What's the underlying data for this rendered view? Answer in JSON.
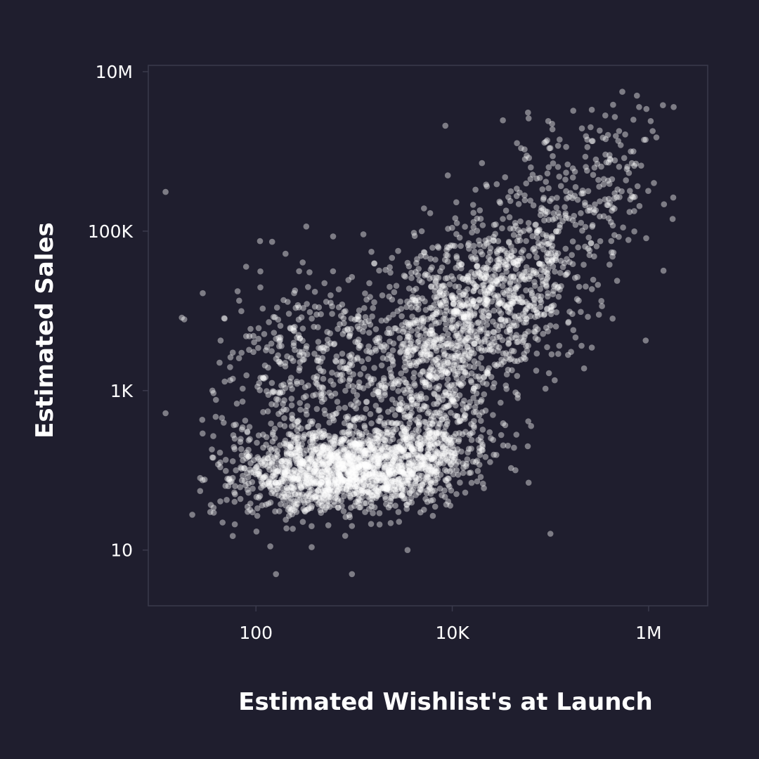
{
  "chart_data": {
    "type": "scatter",
    "xlabel": "Estimated Wishlist's at Launch",
    "ylabel": "Estimated Sales",
    "x_scale": "log",
    "y_scale": "log",
    "xlim": [
      8,
      4000000
    ],
    "ylim": [
      2,
      12000000
    ],
    "x_ticks": [
      {
        "value": 100,
        "label": "100"
      },
      {
        "value": 10000,
        "label": "10K"
      },
      {
        "value": 1000000,
        "label": "1M"
      }
    ],
    "y_ticks": [
      {
        "value": 10,
        "label": "10"
      },
      {
        "value": 1000,
        "label": "1K"
      },
      {
        "value": 100000,
        "label": "100K"
      },
      {
        "value": 10000000,
        "label": "10M"
      }
    ],
    "grid": false,
    "legend": "none",
    "colors": {
      "background": "#1f1e2e",
      "points": "#ffffff",
      "frame": "#3a3a4c"
    },
    "points": [
      [
        12,
        310000
      ],
      [
        12,
        520
      ],
      [
        27,
        80
      ],
      [
        27,
        55
      ],
      [
        36,
        1000
      ],
      [
        36,
        145
      ],
      [
        48,
        8000
      ],
      [
        48,
        1300
      ],
      [
        58,
        130
      ],
      [
        58,
        15
      ],
      [
        58,
        3000
      ],
      [
        110,
        75000
      ],
      [
        130,
        3500
      ],
      [
        160,
        90
      ],
      [
        160,
        5
      ],
      [
        200,
        52000
      ],
      [
        250,
        18000
      ],
      [
        300,
        6000
      ],
      [
        370,
        8000
      ],
      [
        350,
        140
      ],
      [
        280,
        700
      ],
      [
        420,
        1200
      ],
      [
        520,
        13000
      ],
      [
        950,
        5
      ],
      [
        950,
        20
      ],
      [
        700,
        600
      ],
      [
        1100,
        700
      ],
      [
        1500,
        55000
      ],
      [
        1800,
        32000
      ],
      [
        2300,
        20000
      ],
      [
        2500,
        9000
      ],
      [
        3500,
        40000
      ],
      [
        2000,
        3200
      ],
      [
        3500,
        10
      ],
      [
        6000,
        45000
      ],
      [
        8500,
        2100000
      ],
      [
        9000,
        500000
      ],
      [
        11000,
        230000
      ],
      [
        15000,
        2000
      ],
      [
        14000,
        600
      ],
      [
        25000,
        24000
      ],
      [
        30000,
        10000
      ],
      [
        45000,
        5000
      ],
      [
        60000,
        2600000
      ],
      [
        95000,
        2400000
      ],
      [
        100000,
        1100000
      ],
      [
        55000,
        800000
      ],
      [
        230000,
        1550000
      ],
      [
        540000,
        5600000
      ],
      [
        760000,
        5000000
      ],
      [
        800000,
        3600000
      ],
      [
        700000,
        2500000
      ],
      [
        500000,
        1800000
      ],
      [
        520000,
        1200000
      ],
      [
        950000,
        3400000
      ],
      [
        1050000,
        2400000
      ],
      [
        1200000,
        1500000
      ],
      [
        1400000,
        3800000
      ],
      [
        1800000,
        3600000
      ],
      [
        220000,
        1900
      ],
      [
        430000,
        8000
      ],
      [
        250000,
        50000
      ],
      [
        160000,
        300000
      ],
      [
        140000,
        200000
      ],
      [
        180000,
        120000
      ],
      [
        80000,
        180000
      ],
      [
        70000,
        120000
      ],
      [
        120000,
        20000
      ],
      [
        45000,
        280
      ],
      [
        60000,
        70
      ],
      [
        100000,
        16
      ],
      [
        150000,
        30000
      ],
      [
        300000,
        700000
      ],
      [
        400000,
        900000
      ],
      [
        350000,
        450000
      ],
      [
        600000,
        600000
      ],
      [
        650000,
        250000
      ],
      [
        700000,
        1000000
      ],
      [
        900000,
        1400000
      ],
      [
        1100000,
        1800000
      ]
    ],
    "clusters": [
      {
        "cx": 1000,
        "cy": 100,
        "sx": 0.45,
        "sy": 0.25,
        "n": 1100
      },
      {
        "cx": 220,
        "cy": 90,
        "sx": 0.4,
        "sy": 0.3,
        "n": 350
      },
      {
        "cx": 5000,
        "cy": 160,
        "sx": 0.35,
        "sy": 0.25,
        "n": 350
      },
      {
        "cx": 7000,
        "cy": 1800,
        "sx": 0.35,
        "sy": 0.55,
        "n": 600
      },
      {
        "cx": 30000,
        "cy": 20000,
        "sx": 0.4,
        "sy": 0.5,
        "n": 700
      },
      {
        "cx": 200000,
        "cy": 300000,
        "sx": 0.4,
        "sy": 0.45,
        "n": 220
      },
      {
        "cx": 900,
        "cy": 2500,
        "sx": 0.6,
        "sy": 0.6,
        "n": 380
      },
      {
        "cx": 250,
        "cy": 1500,
        "sx": 0.35,
        "sy": 0.45,
        "n": 120
      }
    ]
  }
}
